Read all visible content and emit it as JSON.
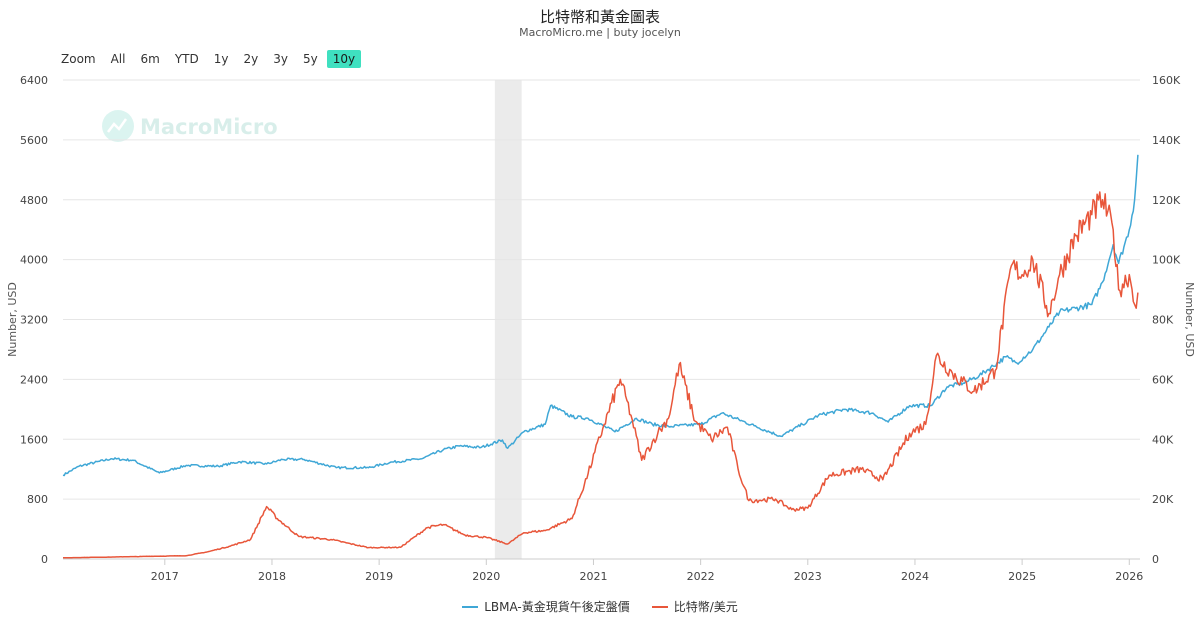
{
  "title": "比特幣和黃金圖表",
  "subtitle": "MacroMicro.me | buty jocelyn",
  "watermark": "MacroMicro",
  "zoom": {
    "label": "Zoom",
    "buttons": [
      "All",
      "6m",
      "YTD",
      "1y",
      "2y",
      "3y",
      "5y",
      "10y"
    ],
    "active": "10y"
  },
  "colors": {
    "gold": "#3fa7d6",
    "btc": "#e8563a",
    "shade": "#ebebeb",
    "active": "#3fe0c0"
  },
  "chart_data": {
    "type": "line",
    "xlabel": "",
    "x_ticks": [
      "2017",
      "2018",
      "2019",
      "2020",
      "2021",
      "2022",
      "2023",
      "2024",
      "2025",
      "2026"
    ],
    "y_left": {
      "label": "Number, USD",
      "ticks": [
        "0",
        "800",
        "1600",
        "2400",
        "3200",
        "4000",
        "4800",
        "5600",
        "6400"
      ],
      "range": [
        0,
        6400
      ]
    },
    "y_right": {
      "label": "Number, USD",
      "ticks": [
        "0",
        "20K",
        "40K",
        "60K",
        "80K",
        "100K",
        "120K",
        "140K",
        "160K"
      ],
      "range": [
        0,
        160000
      ]
    },
    "x_range": [
      2016.05,
      2026.1
    ],
    "grid": true,
    "legend": "bottom",
    "shaded_period": [
      2020.08,
      2020.33
    ],
    "series": [
      {
        "name": "LBMA-黃金現貨午後定盤價",
        "axis": "left",
        "points": [
          [
            2016.05,
            1120
          ],
          [
            2016.2,
            1240
          ],
          [
            2016.5,
            1340
          ],
          [
            2016.7,
            1320
          ],
          [
            2016.95,
            1150
          ],
          [
            2017.2,
            1250
          ],
          [
            2017.5,
            1240
          ],
          [
            2017.7,
            1300
          ],
          [
            2017.95,
            1270
          ],
          [
            2018.1,
            1330
          ],
          [
            2018.3,
            1330
          ],
          [
            2018.6,
            1220
          ],
          [
            2018.9,
            1220
          ],
          [
            2019.1,
            1290
          ],
          [
            2019.4,
            1340
          ],
          [
            2019.6,
            1460
          ],
          [
            2019.75,
            1510
          ],
          [
            2019.95,
            1490
          ],
          [
            2020.15,
            1590
          ],
          [
            2020.2,
            1480
          ],
          [
            2020.35,
            1700
          ],
          [
            2020.55,
            1800
          ],
          [
            2020.6,
            2050
          ],
          [
            2020.8,
            1900
          ],
          [
            2020.95,
            1880
          ],
          [
            2021.2,
            1700
          ],
          [
            2021.4,
            1880
          ],
          [
            2021.55,
            1800
          ],
          [
            2021.7,
            1770
          ],
          [
            2022.0,
            1800
          ],
          [
            2022.2,
            1950
          ],
          [
            2022.5,
            1780
          ],
          [
            2022.75,
            1640
          ],
          [
            2022.95,
            1800
          ],
          [
            2023.1,
            1920
          ],
          [
            2023.35,
            2000
          ],
          [
            2023.6,
            1950
          ],
          [
            2023.75,
            1830
          ],
          [
            2023.95,
            2050
          ],
          [
            2024.15,
            2050
          ],
          [
            2024.3,
            2300
          ],
          [
            2024.45,
            2350
          ],
          [
            2024.6,
            2450
          ],
          [
            2024.85,
            2700
          ],
          [
            2024.95,
            2620
          ],
          [
            2025.1,
            2800
          ],
          [
            2025.25,
            3100
          ],
          [
            2025.35,
            3300
          ],
          [
            2025.5,
            3350
          ],
          [
            2025.65,
            3400
          ],
          [
            2025.75,
            3700
          ],
          [
            2025.85,
            4200
          ],
          [
            2025.9,
            3950
          ],
          [
            2026.0,
            4400
          ],
          [
            2026.05,
            4800
          ],
          [
            2026.08,
            5400
          ]
        ]
      },
      {
        "name": "比特幣/美元",
        "axis": "right",
        "points": [
          [
            2016.05,
            400
          ],
          [
            2016.5,
            650
          ],
          [
            2016.95,
            950
          ],
          [
            2017.2,
            1100
          ],
          [
            2017.4,
            2400
          ],
          [
            2017.6,
            4200
          ],
          [
            2017.8,
            6500
          ],
          [
            2017.95,
            17500
          ],
          [
            2018.05,
            13500
          ],
          [
            2018.25,
            7500
          ],
          [
            2018.55,
            6500
          ],
          [
            2018.9,
            3800
          ],
          [
            2019.2,
            3900
          ],
          [
            2019.45,
            10500
          ],
          [
            2019.6,
            11500
          ],
          [
            2019.8,
            8000
          ],
          [
            2020.0,
            7200
          ],
          [
            2020.2,
            5000
          ],
          [
            2020.35,
            8800
          ],
          [
            2020.55,
            9500
          ],
          [
            2020.8,
            13500
          ],
          [
            2020.95,
            28500
          ],
          [
            2021.1,
            45000
          ],
          [
            2021.25,
            60000
          ],
          [
            2021.35,
            48000
          ],
          [
            2021.45,
            33000
          ],
          [
            2021.6,
            42000
          ],
          [
            2021.7,
            47000
          ],
          [
            2021.8,
            65000
          ],
          [
            2021.95,
            46000
          ],
          [
            2022.1,
            40000
          ],
          [
            2022.25,
            44000
          ],
          [
            2022.35,
            30000
          ],
          [
            2022.45,
            19500
          ],
          [
            2022.7,
            20000
          ],
          [
            2022.85,
            16500
          ],
          [
            2023.0,
            17000
          ],
          [
            2023.2,
            28000
          ],
          [
            2023.5,
            30000
          ],
          [
            2023.7,
            26500
          ],
          [
            2023.95,
            42000
          ],
          [
            2024.1,
            45000
          ],
          [
            2024.2,
            68000
          ],
          [
            2024.35,
            62000
          ],
          [
            2024.55,
            56000
          ],
          [
            2024.75,
            63000
          ],
          [
            2024.9,
            98000
          ],
          [
            2025.0,
            95000
          ],
          [
            2025.1,
            100000
          ],
          [
            2025.25,
            82000
          ],
          [
            2025.35,
            95000
          ],
          [
            2025.5,
            108000
          ],
          [
            2025.65,
            115000
          ],
          [
            2025.75,
            120000
          ],
          [
            2025.85,
            110000
          ],
          [
            2025.9,
            90000
          ],
          [
            2026.0,
            95000
          ],
          [
            2026.05,
            85000
          ],
          [
            2026.08,
            89000
          ]
        ]
      }
    ]
  }
}
